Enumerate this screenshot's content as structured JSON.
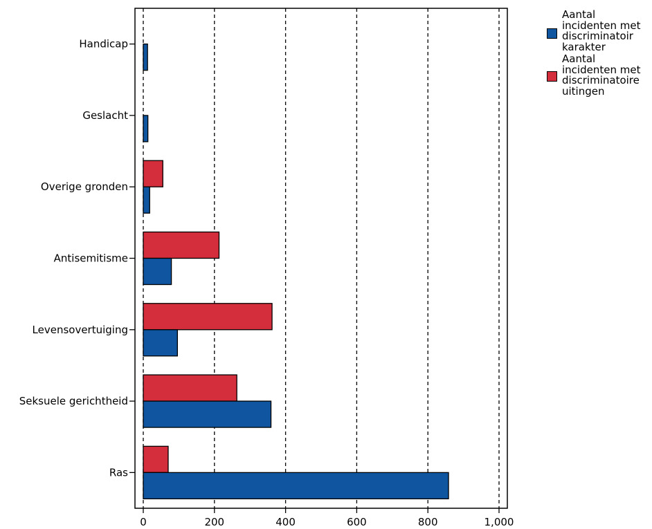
{
  "chart_data": {
    "type": "bar",
    "orientation": "horizontal",
    "categories": [
      "Handicap",
      "Geslacht",
      "Overige gronden",
      "Antisemitisme",
      "Levensovertuiging",
      "Seksuele gerichtheid",
      "Ras"
    ],
    "series": [
      {
        "name": "Aantal\nincidenten met\ndiscriminatoir\nkarakter",
        "color": "#0f55a0",
        "values": [
          12,
          13,
          18,
          79,
          96,
          359,
          858
        ]
      },
      {
        "name": "Aantal\nincidenten met\ndiscriminatoire\nuitingen",
        "color": "#d42d3c",
        "values": [
          0,
          0,
          55,
          213,
          362,
          263,
          70
        ]
      }
    ],
    "xlim": [
      0,
      1000
    ],
    "xticks": [
      0,
      200,
      400,
      600,
      800,
      1000
    ],
    "xtick_labels": [
      "0",
      "200",
      "400",
      "600",
      "800",
      "1,000"
    ],
    "grid": "vertical dashed",
    "legend_position": "top-right"
  }
}
